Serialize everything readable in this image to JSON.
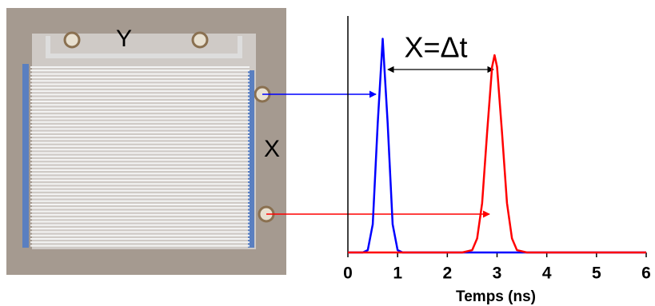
{
  "chart_data": {
    "type": "line",
    "x_label": "Temps (ns)",
    "annotations": [
      "X=Δt",
      "Y",
      "X"
    ],
    "x": [
      0,
      0.3,
      0.4,
      0.5,
      0.6,
      0.7,
      0.8,
      0.9,
      1.0,
      1.1,
      2.3,
      2.5,
      2.6,
      2.7,
      2.8,
      2.9,
      2.95,
      3.0,
      3.1,
      3.2,
      3.3,
      3.4,
      3.6,
      6
    ],
    "series": [
      {
        "color": "#0000ff",
        "values": [
          0,
          0,
          0.01,
          0.12,
          0.55,
          0.91,
          0.55,
          0.12,
          0.01,
          0,
          0,
          0,
          0,
          0,
          0,
          0,
          0,
          0,
          0,
          0,
          0,
          0,
          0,
          0
        ]
      },
      {
        "color": "#ff0000",
        "values": [
          0,
          0,
          0,
          0,
          0,
          0,
          0,
          0,
          0,
          0,
          0,
          0.01,
          0.06,
          0.21,
          0.51,
          0.79,
          0.84,
          0.79,
          0.51,
          0.21,
          0.06,
          0.01,
          0,
          0
        ]
      }
    ],
    "xlim": [
      0,
      6
    ],
    "xticks": [
      0,
      1,
      2,
      3,
      4,
      5,
      6
    ],
    "ylim": [
      0,
      1
    ]
  }
}
